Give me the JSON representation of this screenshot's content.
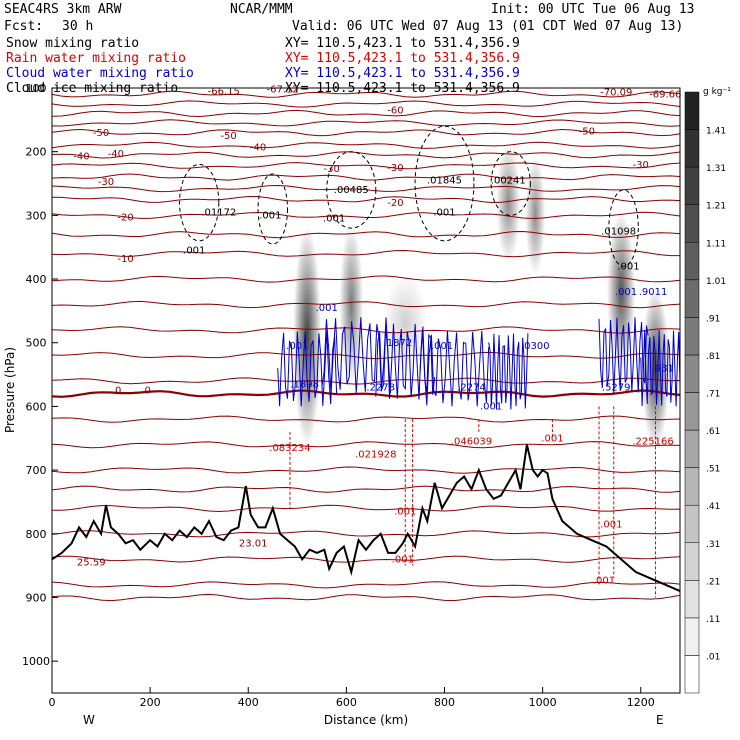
{
  "header": {
    "model": "SEAC4RS  3km ARW",
    "center": "NCAR/MMM",
    "init": "Init: 00 UTC Tue 06 Aug 13",
    "fcst_label": "Fcst:",
    "fcst_value": "30 h",
    "valid": "Valid: 06 UTC Wed 07 Aug 13 (01 CDT Wed 07 Aug 13)",
    "fields": [
      {
        "name": "Snow mixing ratio",
        "xy": "XY= 110.5,423.1 to 531.4,356.9",
        "color": "#000000"
      },
      {
        "name": "Rain water mixing ratio",
        "xy": "XY= 110.5,423.1 to 531.4,356.9",
        "color": "#dd0000"
      },
      {
        "name": "Cloud water mixing ratio",
        "xy": "XY= 110.5,423.1 to 531.4,356.9",
        "color": "#0000cc"
      },
      {
        "name": "Cloud ice mixing ratio",
        "xy": "XY= 110.5,423.1 to 531.4,356.9",
        "color": "#000000"
      }
    ]
  },
  "chart_data": {
    "type": "cross-section",
    "xlabel": "Distance (km)",
    "ylabel": "Pressure (hPa)",
    "xlim": [
      0,
      1280
    ],
    "ylim": [
      1050,
      100
    ],
    "x_ticks": [
      0,
      200,
      400,
      600,
      800,
      1000,
      1200
    ],
    "y_ticks": [
      100,
      200,
      300,
      400,
      500,
      600,
      700,
      800,
      900,
      1000
    ],
    "end_labels": {
      "left": "W",
      "right": "E"
    },
    "colorbar": {
      "unit": "g kg⁻¹",
      "levels": [
        ".01",
        ".11",
        ".21",
        ".31",
        ".41",
        ".51",
        ".61",
        ".71",
        ".81",
        ".91",
        "1.01",
        "1.11",
        "1.21",
        "1.31",
        "1.41"
      ]
    },
    "temperature_contours": [
      {
        "label": "-70",
        "y": 110
      },
      {
        "label": "-60",
        "y": 140
      },
      {
        "label": "-50",
        "y": 170
      },
      {
        "label": "-40",
        "y": 205
      },
      {
        "label": "-30",
        "y": 240
      },
      {
        "label": "-20",
        "y": 275
      },
      {
        "label": "-10",
        "y": 330
      },
      {
        "label": "0",
        "y": 580
      },
      {
        "label": "10",
        "y": 730
      },
      {
        "label": "20",
        "y": 900
      }
    ],
    "temperature_labels": [
      {
        "text": "-66.15",
        "x": 350,
        "y": 110
      },
      {
        "text": "-67.12",
        "x": 470,
        "y": 107
      },
      {
        "text": "-70.09",
        "x": 1150,
        "y": 112
      },
      {
        "text": "-69.66",
        "x": 1250,
        "y": 115
      },
      {
        "text": "-60",
        "x": 700,
        "y": 140
      },
      {
        "text": "-50",
        "x": 100,
        "y": 175
      },
      {
        "text": "-50",
        "x": 360,
        "y": 180
      },
      {
        "text": "-50",
        "x": 1090,
        "y": 173
      },
      {
        "text": "-40",
        "x": 60,
        "y": 212
      },
      {
        "text": "-40",
        "x": 130,
        "y": 208
      },
      {
        "text": "-40",
        "x": 420,
        "y": 198
      },
      {
        "text": "-30",
        "x": 570,
        "y": 232
      },
      {
        "text": "-30",
        "x": 700,
        "y": 230
      },
      {
        "text": "-30",
        "x": 1200,
        "y": 226
      },
      {
        "text": "-30",
        "x": 110,
        "y": 252
      },
      {
        "text": "-20",
        "x": 700,
        "y": 285
      },
      {
        "text": "-20",
        "x": 150,
        "y": 308
      },
      {
        "text": "-10",
        "x": 150,
        "y": 373
      },
      {
        "text": "0",
        "x": 135,
        "y": 580
      },
      {
        "text": "0",
        "x": 195,
        "y": 580
      }
    ],
    "freezing_level_hpa": 580,
    "terrain": [
      [
        0,
        840
      ],
      [
        20,
        830
      ],
      [
        40,
        815
      ],
      [
        55,
        790
      ],
      [
        70,
        805
      ],
      [
        85,
        780
      ],
      [
        100,
        800
      ],
      [
        110,
        755
      ],
      [
        120,
        790
      ],
      [
        135,
        800
      ],
      [
        150,
        815
      ],
      [
        165,
        810
      ],
      [
        180,
        825
      ],
      [
        200,
        810
      ],
      [
        215,
        820
      ],
      [
        230,
        800
      ],
      [
        245,
        810
      ],
      [
        260,
        795
      ],
      [
        275,
        805
      ],
      [
        290,
        790
      ],
      [
        305,
        800
      ],
      [
        320,
        780
      ],
      [
        335,
        805
      ],
      [
        350,
        810
      ],
      [
        365,
        795
      ],
      [
        380,
        790
      ],
      [
        395,
        725
      ],
      [
        405,
        770
      ],
      [
        420,
        790
      ],
      [
        435,
        790
      ],
      [
        450,
        760
      ],
      [
        465,
        800
      ],
      [
        480,
        810
      ],
      [
        495,
        820
      ],
      [
        510,
        840
      ],
      [
        525,
        825
      ],
      [
        540,
        830
      ],
      [
        555,
        825
      ],
      [
        565,
        855
      ],
      [
        580,
        830
      ],
      [
        595,
        820
      ],
      [
        610,
        860
      ],
      [
        625,
        810
      ],
      [
        640,
        825
      ],
      [
        655,
        810
      ],
      [
        670,
        800
      ],
      [
        685,
        830
      ],
      [
        700,
        830
      ],
      [
        715,
        815
      ],
      [
        725,
        800
      ],
      [
        740,
        820
      ],
      [
        755,
        760
      ],
      [
        765,
        780
      ],
      [
        780,
        720
      ],
      [
        795,
        760
      ],
      [
        810,
        740
      ],
      [
        825,
        720
      ],
      [
        840,
        710
      ],
      [
        855,
        730
      ],
      [
        870,
        700
      ],
      [
        885,
        730
      ],
      [
        900,
        745
      ],
      [
        915,
        740
      ],
      [
        930,
        720
      ],
      [
        945,
        700
      ],
      [
        955,
        730
      ],
      [
        968,
        660
      ],
      [
        980,
        700
      ],
      [
        990,
        710
      ],
      [
        1000,
        700
      ],
      [
        1010,
        705
      ],
      [
        1020,
        745
      ],
      [
        1040,
        780
      ],
      [
        1070,
        800
      ],
      [
        1100,
        810
      ],
      [
        1130,
        820
      ],
      [
        1160,
        840
      ],
      [
        1190,
        860
      ],
      [
        1220,
        870
      ],
      [
        1250,
        880
      ],
      [
        1280,
        890
      ]
    ],
    "snow_max_labels": [
      {
        "text": ".01172",
        "x": 340,
        "y": 300
      },
      {
        "text": ".00485",
        "x": 610,
        "y": 265
      },
      {
        "text": ".01845",
        "x": 800,
        "y": 250
      },
      {
        "text": ".00241",
        "x": 930,
        "y": 250
      },
      {
        "text": ".01098",
        "x": 1155,
        "y": 330
      },
      {
        "text": ".001",
        "x": 290,
        "y": 360
      },
      {
        "text": ".001",
        "x": 445,
        "y": 305
      },
      {
        "text": ".001",
        "x": 575,
        "y": 310
      },
      {
        "text": ".001",
        "x": 800,
        "y": 300
      },
      {
        "text": ".001",
        "x": 1175,
        "y": 385
      }
    ],
    "cloud_water_max_labels": [
      {
        "text": ".001",
        "x": 560,
        "y": 450
      },
      {
        "text": ".001",
        "x": 500,
        "y": 510
      },
      {
        "text": ".1898",
        "x": 515,
        "y": 570
      },
      {
        "text": ".2278",
        "x": 670,
        "y": 575
      },
      {
        "text": ".1872",
        "x": 705,
        "y": 505
      },
      {
        "text": ".001",
        "x": 795,
        "y": 510
      },
      {
        "text": ".0300",
        "x": 985,
        "y": 510
      },
      {
        "text": ".2274",
        "x": 855,
        "y": 575
      },
      {
        "text": ".001",
        "x": 895,
        "y": 605
      },
      {
        "text": ".001",
        "x": 1170,
        "y": 425
      },
      {
        "text": ".9011",
        "x": 1225,
        "y": 425
      },
      {
        "text": ".5279",
        "x": 1150,
        "y": 575
      },
      {
        "text": ".931",
        "x": 1245,
        "y": 545
      }
    ],
    "rain_max_labels": [
      {
        "text": ".083234",
        "x": 485,
        "y": 670
      },
      {
        "text": ".021928",
        "x": 660,
        "y": 680
      },
      {
        "text": ".046039",
        "x": 855,
        "y": 660
      },
      {
        "text": ".001",
        "x": 1020,
        "y": 655
      },
      {
        "text": ".225166",
        "x": 1225,
        "y": 660
      },
      {
        "text": ".001",
        "x": 720,
        "y": 770
      },
      {
        "text": ".001",
        "x": 715,
        "y": 845
      },
      {
        "text": ".001",
        "x": 1140,
        "y": 790
      },
      {
        "text": ".001",
        "x": 1125,
        "y": 878
      }
    ],
    "terrain_labels": [
      {
        "text": "25.59",
        "x": 80,
        "y": 850
      },
      {
        "text": "23.01",
        "x": 410,
        "y": 820
      }
    ],
    "shading_cores": [
      {
        "x": 520,
        "y": 490,
        "rx": 14,
        "ry": 110,
        "v": 1.2
      },
      {
        "x": 610,
        "y": 440,
        "rx": 12,
        "ry": 80,
        "v": 0.7
      },
      {
        "x": 930,
        "y": 280,
        "rx": 12,
        "ry": 60,
        "v": 0.6
      },
      {
        "x": 985,
        "y": 300,
        "rx": 10,
        "ry": 60,
        "v": 0.6
      },
      {
        "x": 1160,
        "y": 420,
        "rx": 14,
        "ry": 80,
        "v": 0.9
      },
      {
        "x": 1230,
        "y": 540,
        "rx": 14,
        "ry": 80,
        "v": 1.3
      },
      {
        "x": 720,
        "y": 470,
        "rx": 22,
        "ry": 50,
        "v": 0.25
      }
    ]
  }
}
